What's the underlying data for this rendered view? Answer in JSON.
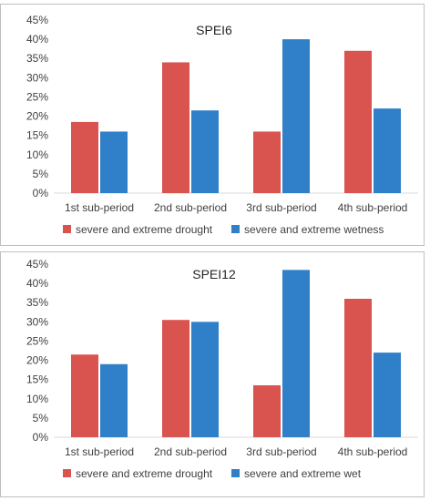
{
  "colors": {
    "drought": "#d9534f",
    "wet": "#2f80c8"
  },
  "chart_data": [
    {
      "type": "bar",
      "title": "SPEI6",
      "categories": [
        "1st sub-period",
        "2nd sub-period",
        "3rd sub-period",
        "4th sub-period"
      ],
      "series": [
        {
          "name": "severe and extreme drought",
          "values": [
            18.5,
            34,
            16,
            37
          ]
        },
        {
          "name": "severe and extreme wetness",
          "values": [
            16,
            21.5,
            40,
            22
          ]
        }
      ],
      "yticks": [
        "0%",
        "5%",
        "10%",
        "15%",
        "20%",
        "25%",
        "30%",
        "35%",
        "40%",
        "45%"
      ],
      "ylim": [
        0,
        45
      ],
      "legend": "bottom",
      "grid": false
    },
    {
      "type": "bar",
      "title": "SPEI12",
      "categories": [
        "1st sub-period",
        "2nd sub-period",
        "3rd sub-period",
        "4th sub-period"
      ],
      "series": [
        {
          "name": "severe and extreme drought",
          "values": [
            21.5,
            30.5,
            13.5,
            36
          ]
        },
        {
          "name": "severe and extreme wet",
          "values": [
            19,
            30,
            43.5,
            22
          ]
        }
      ],
      "yticks": [
        "0%",
        "5%",
        "10%",
        "15%",
        "20%",
        "25%",
        "30%",
        "35%",
        "40%",
        "45%"
      ],
      "ylim": [
        0,
        45
      ],
      "legend": "bottom",
      "grid": false
    }
  ]
}
